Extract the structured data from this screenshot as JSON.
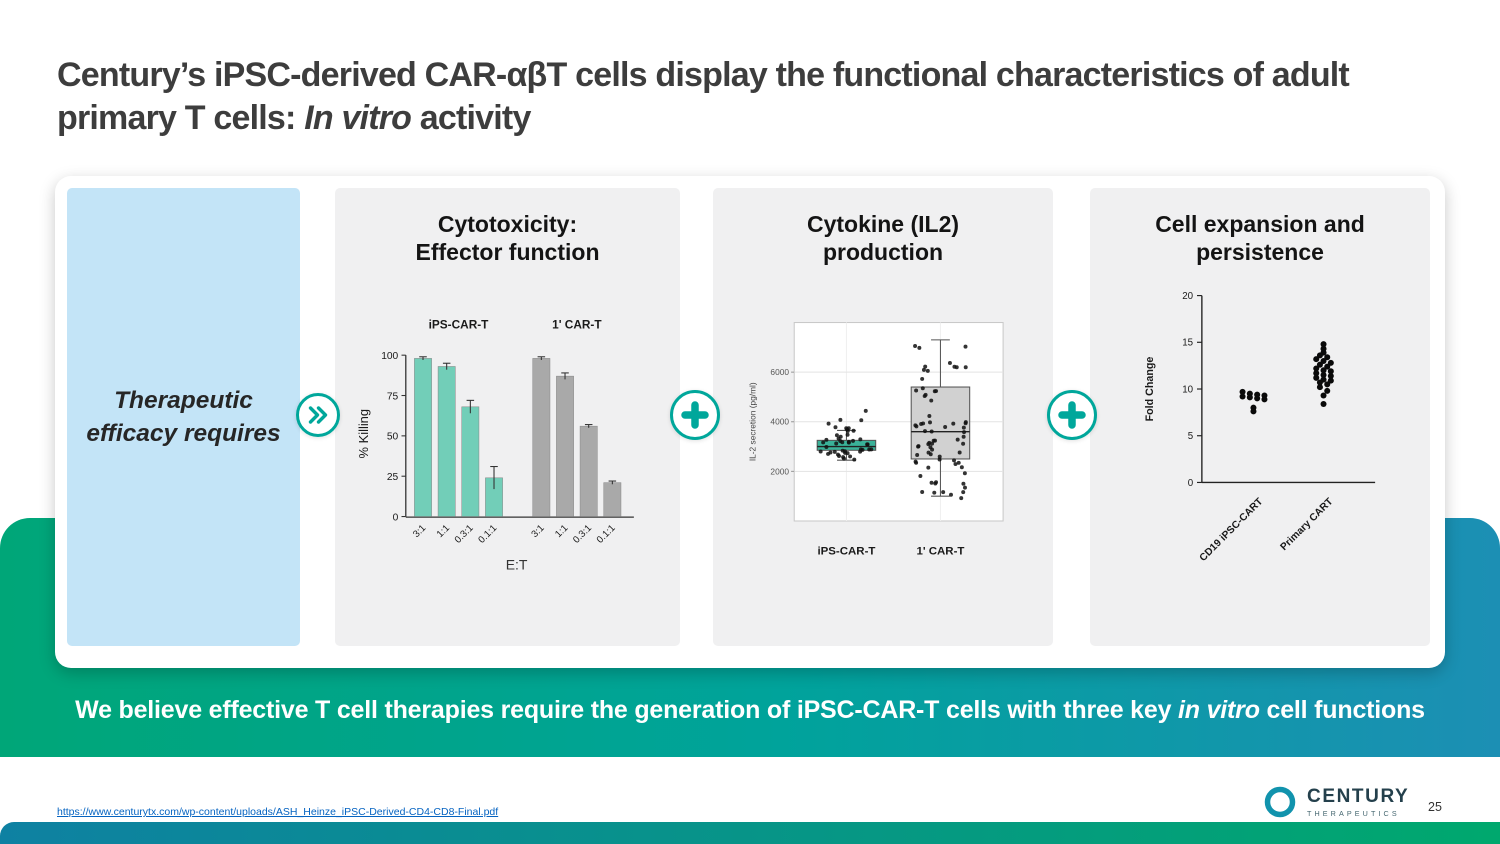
{
  "slide": {
    "title": {
      "prefix": "Century’s iPSC-derived CAR-αβT cells display the functional characteristics of adult primary T cells: ",
      "italic": "In vitro",
      "suffix": " activity"
    },
    "page_number": "25",
    "source_link": "https://www.centurytx.com/wp-content/uploads/ASH_Heinze_iPSC-Derived-CD4-CD8-Final.pdf"
  },
  "panels": {
    "efficacy_label": "Therapeutic efficacy requires",
    "cytotoxicity_title": "Cytotoxicity: Effector function",
    "cytokine_title": "Cytokine (IL2) production",
    "expansion_title": "Cell expansion and persistence"
  },
  "banner": {
    "prefix": "We believe effective T cell therapies require the generation of iPSC-CAR-T cells with three key ",
    "italic": "in vitro",
    "suffix": " cell functions"
  },
  "logo": {
    "brand": "CENTURY",
    "sub": "THERAPEUTICS"
  },
  "icons": {
    "between_efficacy_and_cytotoxicity": "chevron-right-icon",
    "between_cytotoxicity_and_cytokine": "plus-icon",
    "between_cytokine_and_expansion": "plus-icon"
  },
  "colors": {
    "accent_teal": "#00a79b",
    "panel_blue": "#c3e4f7",
    "panel_gray": "#f0f0f1",
    "banner_gradient_left": "#00a678",
    "banner_gradient_mid": "#00a39b",
    "banner_gradient_right": "#1c8fb4",
    "footer_bar_left": "#0e81a2",
    "footer_bar_right": "#00a86e",
    "link_blue": "#0563c1",
    "title_gray": "#3d3d3d",
    "logo_teal": "#1193ad"
  },
  "chart_data": [
    {
      "type": "bar",
      "title": "Cytotoxicity: Effector function",
      "ylabel": "% Killing",
      "xlabel": "E:T",
      "ylim": [
        0,
        100
      ],
      "yticks": [
        0,
        25,
        50,
        75,
        100
      ],
      "categories": [
        "3:1",
        "1:1",
        "0.3:1",
        "0.1:1"
      ],
      "series": [
        {
          "name": "iPS-CAR-T",
          "color": "#72ceb8",
          "values": [
            98,
            93,
            68,
            24
          ],
          "errors": [
            1,
            2,
            4,
            7
          ]
        },
        {
          "name": "1' CAR-T",
          "color": "#a9a9a9",
          "values": [
            98,
            87,
            56,
            21
          ],
          "errors": [
            1,
            2,
            1,
            1
          ]
        }
      ],
      "legend_position": "top",
      "grid": false
    },
    {
      "type": "box",
      "title": "Cytokine (IL2) production",
      "ylabel": "IL-2 secretion (pg/ml)",
      "ylim": [
        0,
        8000
      ],
      "yticks": [
        2000,
        4000,
        6000
      ],
      "categories": [
        "iPS-CAR-T",
        "1' CAR-T"
      ],
      "grid": true,
      "scatter_overlay": true,
      "boxes": [
        {
          "name": "iPS-CAR-T",
          "color": "#2fae94",
          "min": 2450,
          "q1": 2850,
          "median": 3000,
          "q3": 3250,
          "max": 3650,
          "points_min": 2350,
          "points_max": 4600,
          "n_points": 45
        },
        {
          "name": "1' CAR-T",
          "color": "#cfcfcf",
          "min": 1000,
          "q1": 2500,
          "median": 3600,
          "q3": 5400,
          "max": 7300,
          "points_min": 900,
          "points_max": 7600,
          "n_points": 70
        }
      ]
    },
    {
      "type": "scatter",
      "title": "Cell expansion and persistence",
      "ylabel": "Fold Change",
      "ylim": [
        0,
        20
      ],
      "yticks": [
        0,
        5,
        10,
        15,
        20
      ],
      "grid": false,
      "groups": [
        {
          "name": "CD19 iPSC-CART",
          "values": [
            9.7,
            9.5,
            9.4,
            9.3,
            9.2,
            9.1,
            9.0,
            8.9,
            8.0,
            7.6
          ]
        },
        {
          "name": "Primary CART",
          "values": [
            14.8,
            14.3,
            13.9,
            13.6,
            13.4,
            13.2,
            13.0,
            12.8,
            12.6,
            12.4,
            12.2,
            12.0,
            11.9,
            11.7,
            11.5,
            11.4,
            11.2,
            11.0,
            10.9,
            10.7,
            10.5,
            10.2,
            9.8,
            9.3,
            8.4
          ]
        }
      ]
    }
  ]
}
